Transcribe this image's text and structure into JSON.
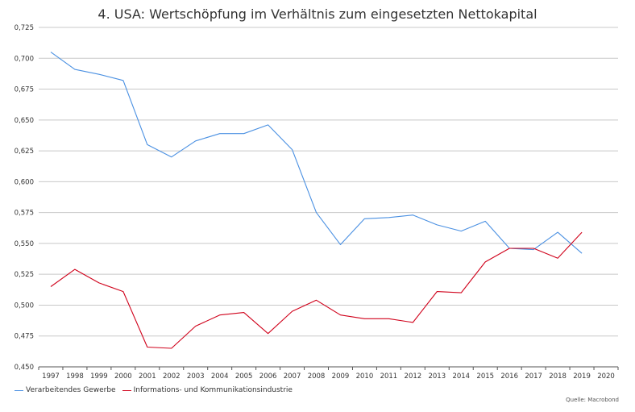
{
  "chart_data": {
    "type": "line",
    "title": "4. USA: Wertschöpfung im Verhältnis zum eingesetzten Nettokapital",
    "xlabel": "",
    "ylabel": "",
    "categories": [
      "1997",
      "1998",
      "1999",
      "2000",
      "2001",
      "2002",
      "2003",
      "2004",
      "2005",
      "2006",
      "2007",
      "2008",
      "2009",
      "2010",
      "2011",
      "2012",
      "2013",
      "2014",
      "2015",
      "2016",
      "2017",
      "2018",
      "2019",
      "2020"
    ],
    "y_ticks": [
      "0,450",
      "0,475",
      "0,500",
      "0,525",
      "0,550",
      "0,575",
      "0,600",
      "0,625",
      "0,650",
      "0,675",
      "0,700",
      "0,725"
    ],
    "ylim": [
      0.45,
      0.725
    ],
    "grid": true,
    "legend_position": "bottom-left",
    "series": [
      {
        "name": "Verarbeitendes Gewerbe",
        "color": "#4a90e2",
        "values": [
          0.705,
          0.691,
          0.687,
          0.682,
          0.63,
          0.62,
          0.633,
          0.639,
          0.639,
          0.646,
          0.626,
          0.575,
          0.549,
          0.57,
          0.571,
          0.573,
          0.565,
          0.56,
          0.568,
          0.546,
          0.545,
          0.559,
          0.542,
          null
        ]
      },
      {
        "name": "Informations- und Kommunikationsindustrie",
        "color": "#d0021b",
        "values": [
          0.515,
          0.529,
          0.518,
          0.511,
          0.466,
          0.465,
          0.483,
          0.492,
          0.494,
          0.477,
          0.495,
          0.504,
          0.492,
          0.489,
          0.489,
          0.486,
          0.511,
          0.51,
          0.535,
          0.546,
          0.546,
          0.538,
          0.559,
          null
        ]
      }
    ],
    "source": "Quelle: Macrobond"
  }
}
